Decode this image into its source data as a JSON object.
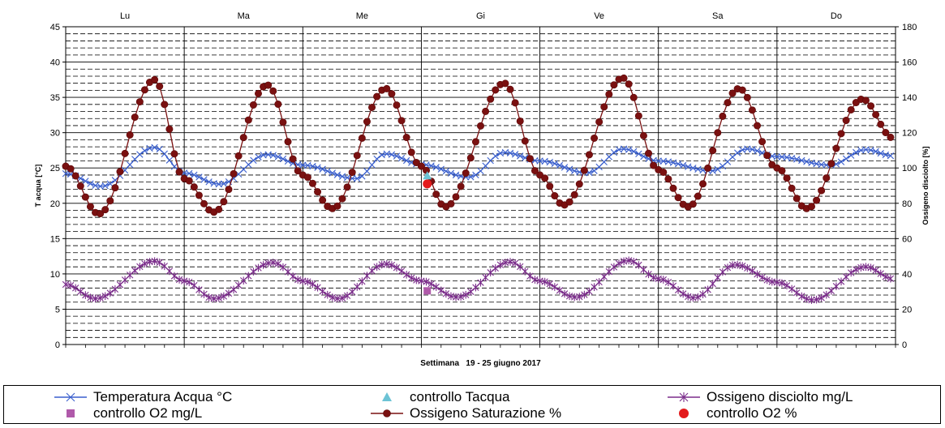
{
  "chart_data": {
    "type": "line",
    "xlabel": "Settimana   19 - 25 giugno 2017",
    "ylabel": "T acqua [°C]",
    "y2label": "Ossigeno disciolto [%]",
    "ylim": [
      0,
      45
    ],
    "y2lim": [
      0,
      180
    ],
    "yticks": [
      0,
      5,
      10,
      15,
      20,
      25,
      30,
      35,
      40,
      45
    ],
    "y2ticks": [
      0,
      20,
      40,
      60,
      80,
      100,
      120,
      140,
      160,
      180
    ],
    "day_labels": [
      "Lu",
      "Ma",
      "Me",
      "Gi",
      "Ve",
      "Sa",
      "Do"
    ],
    "grid": true,
    "points_per_day": 24,
    "series": [
      {
        "name": "Temperatura Acqua °C",
        "axis": "left",
        "color": "#3a5fcd",
        "marker": "x",
        "keypoints": [
          [
            0,
            24.2
          ],
          [
            0.3,
            22.4
          ],
          [
            0.75,
            27.9
          ],
          [
            1.0,
            24.3
          ],
          [
            1.3,
            22.7
          ],
          [
            1.7,
            26.9
          ],
          [
            2.0,
            25.4
          ],
          [
            2.45,
            23.5
          ],
          [
            2.7,
            27.0
          ],
          [
            3.0,
            25.5
          ],
          [
            3.4,
            23.7
          ],
          [
            3.7,
            27.2
          ],
          [
            4.0,
            26.0
          ],
          [
            4.4,
            24.3
          ],
          [
            4.7,
            27.7
          ],
          [
            5.0,
            26.0
          ],
          [
            5.45,
            24.6
          ],
          [
            5.75,
            27.7
          ],
          [
            6.0,
            26.6
          ],
          [
            6.45,
            25.4
          ],
          [
            6.75,
            27.6
          ],
          [
            6.98,
            26.7
          ]
        ]
      },
      {
        "name": "Ossigeno disciolto mg/L",
        "axis": "left",
        "color": "#7b2d8b",
        "marker": "star",
        "keypoints": [
          [
            0,
            8.5
          ],
          [
            0.25,
            6.5
          ],
          [
            0.75,
            11.8
          ],
          [
            1.0,
            9.0
          ],
          [
            1.25,
            6.5
          ],
          [
            1.75,
            11.6
          ],
          [
            2.0,
            9.0
          ],
          [
            2.3,
            6.5
          ],
          [
            2.7,
            11.4
          ],
          [
            3.0,
            9.0
          ],
          [
            3.3,
            6.7
          ],
          [
            3.75,
            11.7
          ],
          [
            4.0,
            9.0
          ],
          [
            4.3,
            6.7
          ],
          [
            4.75,
            11.9
          ],
          [
            5.0,
            9.3
          ],
          [
            5.3,
            6.6
          ],
          [
            5.65,
            11.3
          ],
          [
            6.0,
            8.8
          ],
          [
            6.3,
            6.3
          ],
          [
            6.75,
            11.0
          ],
          [
            6.98,
            9.3
          ]
        ]
      },
      {
        "name": "Ossigeno Saturazione %",
        "axis": "right",
        "color": "#7a1010",
        "marker": "circle",
        "keypoints": [
          [
            0,
            101
          ],
          [
            0.28,
            74
          ],
          [
            0.75,
            150
          ],
          [
            1.0,
            94
          ],
          [
            1.25,
            75
          ],
          [
            1.7,
            147
          ],
          [
            2.0,
            96
          ],
          [
            2.25,
            77
          ],
          [
            2.7,
            145
          ],
          [
            3.0,
            101
          ],
          [
            3.2,
            78
          ],
          [
            3.7,
            148
          ],
          [
            4.0,
            96
          ],
          [
            4.2,
            79
          ],
          [
            4.7,
            151
          ],
          [
            5.0,
            99
          ],
          [
            5.25,
            78
          ],
          [
            5.68,
            145
          ],
          [
            6.0,
            100
          ],
          [
            6.25,
            77
          ],
          [
            6.72,
            139
          ],
          [
            6.98,
            117
          ]
        ]
      }
    ],
    "controls": [
      {
        "name": "controllo Tacqua",
        "axis": "left",
        "x": 3.05,
        "y": 23.9,
        "color": "#6cc3d5",
        "marker": "triangle"
      },
      {
        "name": "controllo O2 mg/L",
        "axis": "left",
        "x": 3.05,
        "y": 7.6,
        "color": "#b05aaa",
        "marker": "square"
      },
      {
        "name": "controllo O2 %",
        "axis": "right",
        "x": 3.05,
        "y": 91,
        "color": "#e31a1c",
        "marker": "dot"
      }
    ]
  },
  "legend": {
    "items": [
      {
        "label": "Temperatura Acqua °C",
        "color": "#3a5fcd",
        "marker": "x",
        "line": true
      },
      {
        "label": "controllo Tacqua",
        "color": "#6cc3d5",
        "marker": "triangle",
        "line": false
      },
      {
        "label": "Ossigeno disciolto mg/L",
        "color": "#7b2d8b",
        "marker": "star",
        "line": true
      },
      {
        "label": "controllo O2 mg/L",
        "color": "#b05aaa",
        "marker": "square",
        "line": false
      },
      {
        "label": "Ossigeno Saturazione %",
        "color": "#7a1010",
        "marker": "circle",
        "line": true
      },
      {
        "label": "controllo O2 %",
        "color": "#e31a1c",
        "marker": "dot",
        "line": false
      }
    ]
  }
}
